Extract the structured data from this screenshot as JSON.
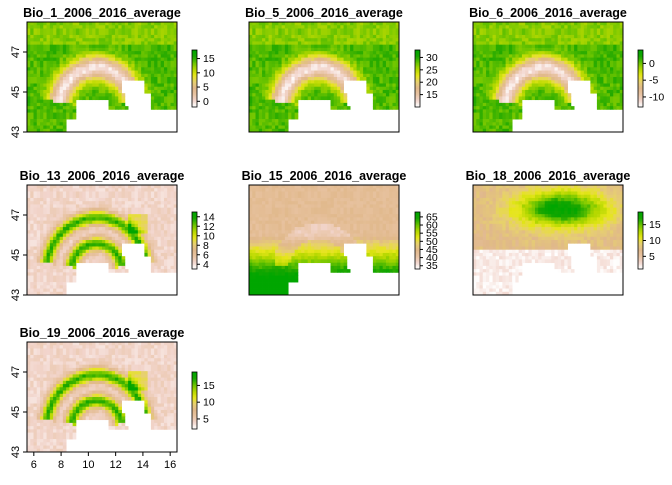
{
  "chart_data": [
    {
      "type": "heatmap",
      "title": "Bio_1_2006_2016_average",
      "legend_ticks": [
        0,
        5,
        10,
        15
      ],
      "legend_range": [
        -2,
        18
      ],
      "show_x_axis": false,
      "show_y_axis": true,
      "y_ticks": [
        43,
        45,
        47
      ],
      "ylim": [
        43,
        48.5
      ],
      "xlim": [
        5.5,
        16.5
      ],
      "pattern": "warm_lowlands"
    },
    {
      "type": "heatmap",
      "title": "Bio_5_2006_2016_average",
      "legend_ticks": [
        15,
        20,
        25,
        30
      ],
      "legend_range": [
        10,
        33
      ],
      "show_x_axis": false,
      "show_y_axis": false,
      "ylim": [
        43,
        48.5
      ],
      "xlim": [
        5.5,
        16.5
      ],
      "pattern": "warm_lowlands"
    },
    {
      "type": "heatmap",
      "title": "Bio_6_2006_2016_average",
      "legend_ticks": [
        -10,
        -5,
        0
      ],
      "legend_range": [
        -13,
        4
      ],
      "show_x_axis": false,
      "show_y_axis": false,
      "ylim": [
        43,
        48.5
      ],
      "xlim": [
        5.5,
        16.5
      ],
      "pattern": "warm_lowlands"
    },
    {
      "type": "heatmap",
      "title": "Bio_13_2006_2016_average",
      "legend_ticks": [
        4,
        6,
        8,
        10,
        12,
        14
      ],
      "legend_range": [
        3,
        15
      ],
      "show_x_axis": false,
      "show_y_axis": true,
      "y_ticks": [
        43,
        45,
        47
      ],
      "ylim": [
        43,
        48.5
      ],
      "xlim": [
        5.5,
        16.5
      ],
      "pattern": "alpine_arc"
    },
    {
      "type": "heatmap",
      "title": "Bio_15_2006_2016_average",
      "legend_ticks": [
        35,
        40,
        45,
        50,
        55,
        60,
        65
      ],
      "legend_range": [
        33,
        68
      ],
      "show_x_axis": false,
      "show_y_axis": false,
      "ylim": [
        43,
        48.5
      ],
      "xlim": [
        5.5,
        16.5
      ],
      "pattern": "south_high"
    },
    {
      "type": "heatmap",
      "title": "Bio_18_2006_2016_average",
      "legend_ticks": [
        5,
        10,
        15
      ],
      "legend_range": [
        1,
        19
      ],
      "show_x_axis": false,
      "show_y_axis": false,
      "ylim": [
        43,
        48.5
      ],
      "xlim": [
        5.5,
        16.5
      ],
      "pattern": "north_high"
    },
    {
      "type": "heatmap",
      "title": "Bio_19_2006_2016_average",
      "legend_ticks": [
        5,
        10,
        15
      ],
      "legend_range": [
        2,
        19
      ],
      "show_x_axis": true,
      "x_ticks": [
        6,
        8,
        10,
        12,
        14,
        16
      ],
      "show_y_axis": true,
      "y_ticks": [
        43,
        45,
        47
      ],
      "ylim": [
        43,
        48.5
      ],
      "xlim": [
        5.5,
        16.5
      ],
      "pattern": "alpine_arc"
    }
  ],
  "colors": {
    "scale": [
      "#ffffff",
      "#f2d5cc",
      "#e8c3a2",
      "#e0b88a",
      "#e7d070",
      "#e6e61a",
      "#b5d800",
      "#6ec500",
      "#1aa600",
      "#00a600"
    ],
    "water": "#ffffff"
  }
}
